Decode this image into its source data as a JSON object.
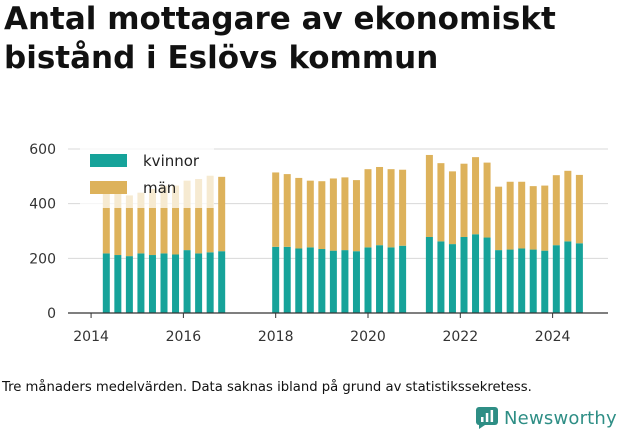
{
  "title": "Antal mottagare av ekonomiskt bistånd i Eslövs kommun",
  "footnote": "Tre månaders medelvärden. Data saknas ibland på grund av statistikssekretess.",
  "brand": {
    "name": "Newsworthy",
    "icon": "newsworthy-logo-icon"
  },
  "colors": {
    "kvinnor": "#16a39a",
    "man": "#ddb25b",
    "grid": "#d8d8d8",
    "axis": "#333333"
  },
  "chart_data": {
    "type": "bar",
    "stacked": true,
    "title": "Antal mottagare av ekonomiskt bistånd i Eslövs kommun",
    "xlabel": "",
    "ylabel": "",
    "xlim": [
      2013.5,
      2025.2
    ],
    "ylim": [
      0,
      640
    ],
    "x_ticks": [
      2014,
      2016,
      2018,
      2020,
      2022,
      2024
    ],
    "y_ticks": [
      0,
      200,
      400,
      600
    ],
    "grid": true,
    "legend": "top-left",
    "x": [
      2014.33,
      2014.58,
      2014.83,
      2015.08,
      2015.33,
      2015.58,
      2015.83,
      2016.08,
      2016.33,
      2016.58,
      2016.83,
      2018.0,
      2018.25,
      2018.5,
      2018.75,
      2019.0,
      2019.25,
      2019.5,
      2019.75,
      2020.0,
      2020.25,
      2020.5,
      2020.75,
      2021.33,
      2021.58,
      2021.83,
      2022.08,
      2022.33,
      2022.58,
      2022.83,
      2023.08,
      2023.33,
      2023.58,
      2023.83,
      2024.08,
      2024.33,
      2024.58
    ],
    "series": [
      {
        "name": "kvinnor",
        "values": [
          218,
          212,
          208,
          218,
          212,
          218,
          214,
          230,
          218,
          222,
          226,
          242,
          242,
          236,
          240,
          234,
          228,
          230,
          226,
          240,
          248,
          240,
          246,
          278,
          262,
          252,
          278,
          288,
          276,
          230,
          232,
          236,
          232,
          228,
          248,
          262,
          255
        ]
      },
      {
        "name": "män",
        "values": [
          262,
          256,
          222,
          222,
          242,
          248,
          252,
          254,
          272,
          280,
          272,
          272,
          266,
          258,
          244,
          248,
          264,
          266,
          260,
          286,
          286,
          286,
          278,
          300,
          286,
          266,
          268,
          282,
          274,
          232,
          248,
          244,
          232,
          238,
          256,
          258,
          250
        ]
      }
    ]
  }
}
